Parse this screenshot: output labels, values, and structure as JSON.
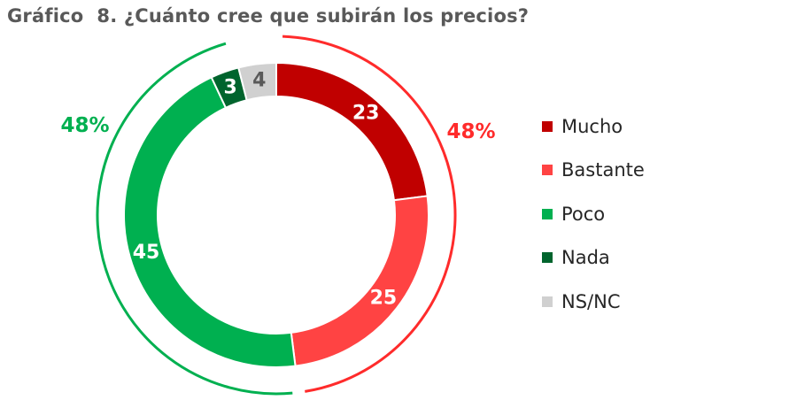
{
  "title": "Gráfico  8. ¿Cuánto cree que subirán los precios?",
  "chart_data": {
    "type": "donut",
    "categories": [
      "Mucho",
      "Bastante",
      "Poco",
      "Nada",
      "NS/NC"
    ],
    "values": [
      23,
      25,
      45,
      3,
      4
    ],
    "colors": [
      "#c00000",
      "#ff4343",
      "#00b050",
      "#00642d",
      "#d0d0d0"
    ],
    "label_colors": [
      "#ffffff",
      "#ffffff",
      "#ffffff",
      "#ffffff",
      "#595959"
    ],
    "groups": [
      {
        "label": "48%",
        "members": [
          "Mucho",
          "Bastante"
        ],
        "color": "#ff2b2b",
        "side": "right"
      },
      {
        "label": "48%",
        "members": [
          "Poco",
          "Nada"
        ],
        "color": "#00b050",
        "side": "left"
      }
    ],
    "legend_position": "right"
  }
}
